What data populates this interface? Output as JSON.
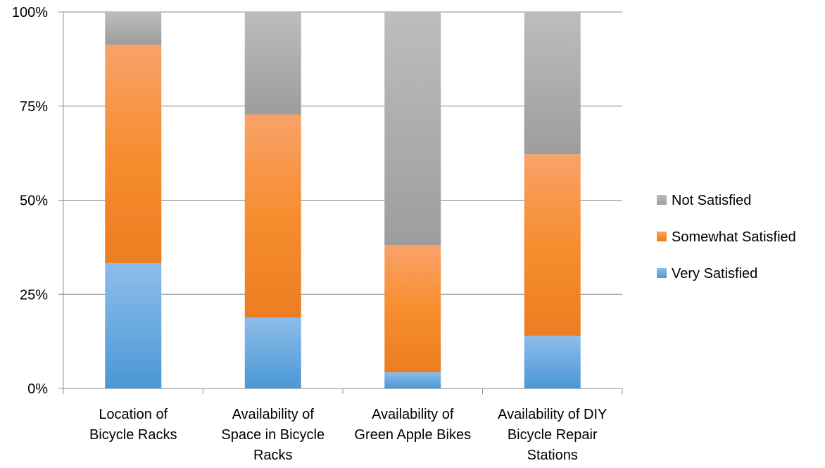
{
  "chart_data": {
    "type": "bar",
    "stacked": true,
    "percent_stacked": true,
    "categories": [
      [
        "Location of",
        "Bicycle Racks"
      ],
      [
        "Availability of",
        "Space in Bicycle",
        "Racks"
      ],
      [
        "Availability of",
        "Green Apple Bikes"
      ],
      [
        "Availability of DIY",
        "Bicycle Repair",
        "Stations"
      ]
    ],
    "series": [
      {
        "name": "Very Satisfied",
        "values": [
          33.3,
          18.8,
          4.3,
          14.0
        ],
        "color": "#4f9fdb"
      },
      {
        "name": "Somewhat Satisfied",
        "values": [
          58.0,
          54.0,
          33.8,
          48.2
        ],
        "color": "#f58426"
      },
      {
        "name": "Not Satisfied",
        "values": [
          8.7,
          27.2,
          61.9,
          37.8
        ],
        "color": "#a6a6a6"
      }
    ],
    "yticks": [
      "0%",
      "25%",
      "50%",
      "75%",
      "100%"
    ],
    "ylim": [
      0,
      100
    ],
    "grid": true,
    "legend_position": "right"
  }
}
